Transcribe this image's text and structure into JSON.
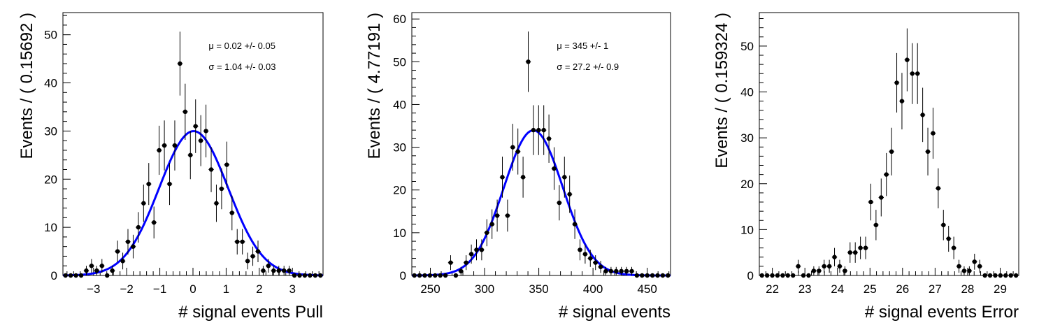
{
  "chart_data": [
    {
      "type": "scatter",
      "name": "pull",
      "xlabel": "# signal events Pull",
      "ylabel": "Events / ( 0.15692 )",
      "xlim": [
        -3.923,
        3.923
      ],
      "ylim": [
        0,
        54.6
      ],
      "x_ticks": [
        -3,
        -2,
        -1,
        0,
        1,
        2,
        3
      ],
      "y_ticks": [
        0,
        10,
        20,
        30,
        40,
        50
      ],
      "stats": [
        "μ =  0.02 +/- 0.05",
        "σ =  1.04 +/- 0.03"
      ],
      "bin_width": 0.15692,
      "counts": [
        0,
        0,
        0,
        0,
        1,
        2,
        1,
        2,
        0,
        1,
        5,
        3,
        7,
        6,
        10,
        15,
        19,
        11,
        26,
        27,
        19,
        27,
        44,
        34,
        25,
        31,
        28,
        30,
        22,
        15,
        18,
        23,
        13,
        7,
        7,
        3,
        4,
        5,
        1,
        2,
        1,
        1,
        1,
        1,
        0,
        0,
        0,
        0,
        0,
        0
      ],
      "fit": {
        "type": "gaussian",
        "mean": 0.02,
        "sigma": 1.04,
        "color": "#0000ff"
      }
    },
    {
      "type": "scatter",
      "name": "signal",
      "xlabel": "# signal events",
      "ylabel": "Events / ( 4.77191 )",
      "xlim": [
        232.9,
        471.5
      ],
      "ylim": [
        0,
        61.5
      ],
      "x_ticks": [
        250,
        300,
        350,
        400,
        450
      ],
      "y_ticks": [
        0,
        10,
        20,
        30,
        40,
        50,
        60
      ],
      "stats": [
        "μ =  345 +/- 1",
        "σ =  27.2 +/- 0.9"
      ],
      "bin_width": 4.77191,
      "counts": [
        0,
        0,
        0,
        0,
        0,
        0,
        0,
        3,
        0,
        1,
        3,
        5,
        6,
        6,
        10,
        12,
        14,
        23,
        14,
        30,
        29,
        23,
        50,
        34,
        34,
        34,
        32,
        25,
        17,
        23,
        19,
        12,
        6,
        5,
        4,
        3,
        2,
        1,
        1,
        1,
        1,
        1,
        1,
        0,
        0,
        0,
        0,
        0,
        0,
        0
      ],
      "fit": {
        "type": "gaussian",
        "mean": 345,
        "sigma": 27.2,
        "color": "#0000ff"
      }
    },
    {
      "type": "scatter",
      "name": "error",
      "xlabel": "# signal events Error",
      "ylabel": "Events / ( 0.159324 )",
      "xlim": [
        21.6,
        29.57
      ],
      "ylim": [
        0,
        57.3
      ],
      "x_ticks": [
        22,
        23,
        24,
        25,
        26,
        27,
        28,
        29
      ],
      "y_ticks": [
        0,
        10,
        20,
        30,
        40,
        50
      ],
      "stats": [],
      "bin_width": 0.159324,
      "counts": [
        0,
        0,
        0,
        0,
        0,
        0,
        0,
        2,
        0,
        0,
        1,
        1,
        2,
        2,
        4,
        2,
        1,
        5,
        5,
        6,
        6,
        16,
        11,
        17,
        22,
        27,
        42,
        38,
        47,
        44,
        44,
        35,
        27,
        31,
        19,
        11,
        8,
        6,
        2,
        1,
        1,
        3,
        2,
        0,
        0,
        0,
        0,
        0,
        0,
        0
      ],
      "fit": null
    }
  ]
}
